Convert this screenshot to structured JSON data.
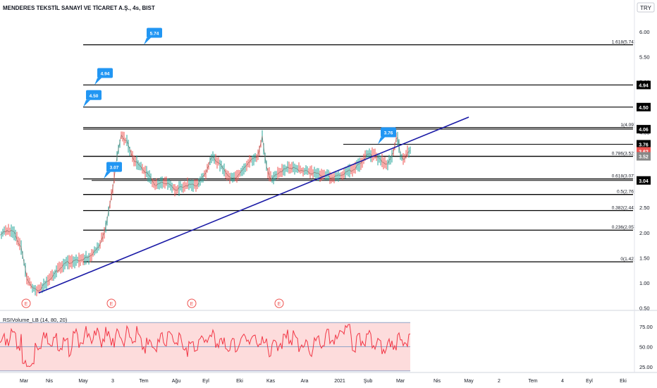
{
  "header": {
    "symbol_title": "MENDERES TEKSTİL SANAYİ VE TİCARET A.Ş., 4s, BIST",
    "currency": "TRY"
  },
  "colors": {
    "up": "#26a69a",
    "down": "#ef5350",
    "trendline": "#1a1aa6",
    "callout": "#2196f3",
    "axis_text": "#131722",
    "rsi_line": "#f23645",
    "rsi_band": "#fddcdc",
    "rsi_level": "#90a4c8"
  },
  "price_axis": {
    "ticks": [
      {
        "v": 6.0,
        "label": "6.00"
      },
      {
        "v": 5.5,
        "label": "5.50"
      },
      {
        "v": 5.0,
        "label": "5.00"
      },
      {
        "v": 4.5,
        "label": "4.50"
      },
      {
        "v": 4.0,
        "label": "4.00"
      },
      {
        "v": 3.5,
        "label": "3.50"
      },
      {
        "v": 3.0,
        "label": "3.00"
      },
      {
        "v": 2.5,
        "label": "2.50"
      },
      {
        "v": 2.0,
        "label": "2.00"
      },
      {
        "v": 1.5,
        "label": "1.50"
      },
      {
        "v": 1.0,
        "label": "1.00"
      },
      {
        "v": 0.5,
        "label": "0.50"
      }
    ],
    "badges": [
      {
        "v": 4.94,
        "label": "4.94",
        "bg": "#000000"
      },
      {
        "v": 4.5,
        "label": "4.50",
        "bg": "#000000"
      },
      {
        "v": 4.06,
        "label": "4.06",
        "bg": "#000000"
      },
      {
        "v": 3.76,
        "label": "3.76",
        "bg": "#000000"
      },
      {
        "v": 3.62,
        "label": "3.62",
        "bg": "#ef5350"
      },
      {
        "v": 3.52,
        "label": "3.52",
        "bg": "#888888"
      },
      {
        "v": 3.04,
        "label": "3.04",
        "bg": "#000000"
      }
    ]
  },
  "rsi_axis": {
    "ticks": [
      {
        "v": 75,
        "label": "75.00"
      },
      {
        "v": 50,
        "label": "50.00"
      },
      {
        "v": 25,
        "label": "25.00"
      }
    ]
  },
  "time_axis": {
    "labels": [
      "Mar",
      "Nis",
      "May",
      "3",
      "Tem",
      "Ağu",
      "Eyl",
      "Eki",
      "Kas",
      "Ara",
      "2021",
      "Şub",
      "Mar",
      "Nis",
      "May",
      "2",
      "Tem",
      "4",
      "Eyl",
      "Eki"
    ]
  },
  "earnings_markers": [
    "E",
    "E",
    "E",
    "E"
  ],
  "fib_levels": [
    {
      "label": "1.618(5.74)",
      "value": 5.74
    },
    {
      "label": "1(4.09)",
      "value": 4.09
    },
    {
      "label": "0.786(3.52)",
      "value": 3.52
    },
    {
      "label": "0.618(3.07)",
      "value": 3.07
    },
    {
      "label": "0.5(2.76)",
      "value": 2.76
    },
    {
      "label": "0.382(2.44)",
      "value": 2.44
    },
    {
      "label": "0.236(2.05)",
      "value": 2.05
    },
    {
      "label": "0(1.42)",
      "value": 1.42
    }
  ],
  "horizontal_levels": [
    4.94,
    4.5,
    4.06,
    3.76,
    3.04
  ],
  "callouts": [
    {
      "label": "5.74",
      "value": 5.74
    },
    {
      "label": "4.94",
      "value": 4.94
    },
    {
      "label": "4.50",
      "value": 4.5
    },
    {
      "label": "3.76",
      "value": 3.76
    },
    {
      "label": "3.07",
      "value": 3.07
    }
  ],
  "rsi_indicator": {
    "label": "RSIVolume_LB (14, 80, 20)",
    "upper": 80,
    "lower": 20,
    "mid": 50
  },
  "chart_data": {
    "type": "line",
    "title": "MENDERES TEKSTİL SANAYİ VE TİCARET A.Ş., 4s, BIST",
    "x": [
      "Mar",
      "Nis",
      "May",
      "3",
      "Tem",
      "Ağu",
      "Eyl",
      "Eki",
      "Kas",
      "Ara",
      "2021",
      "Şub",
      "Mar"
    ],
    "series": [
      {
        "values": [
          1.95,
          0.85,
          1.45,
          2.6,
          3.5,
          3.05,
          3.1,
          3.4,
          3.15,
          3.15,
          3.1,
          3.6,
          3.62
        ]
      }
    ],
    "ylim": [
      0.5,
      6.2
    ],
    "grid": false
  }
}
